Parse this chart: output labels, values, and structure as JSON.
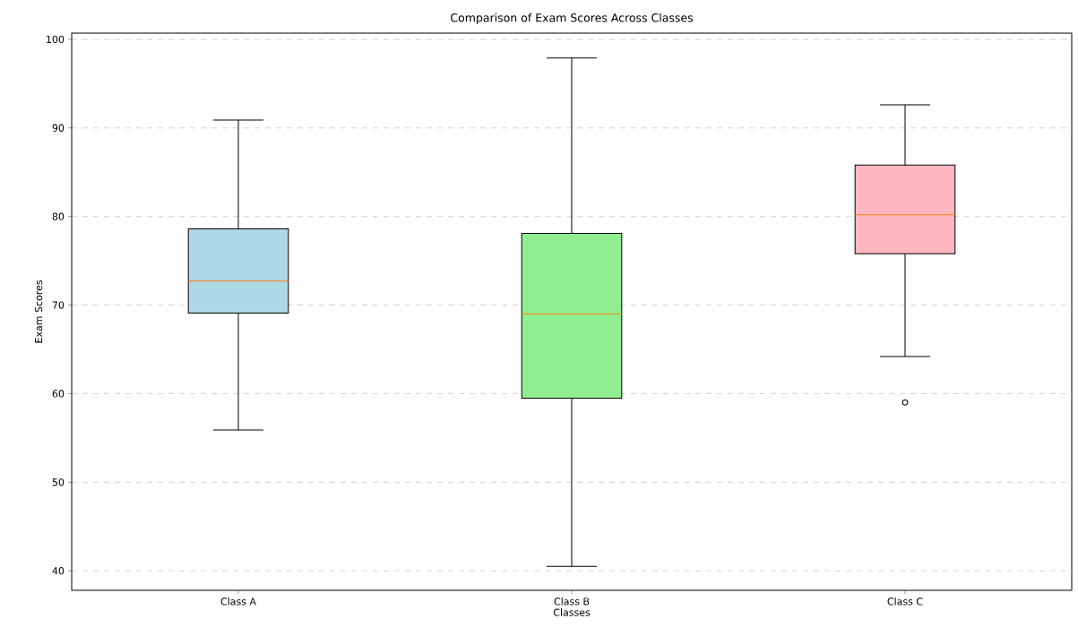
{
  "chart_data": {
    "type": "box",
    "title": "Comparison of Exam Scores Across Classes",
    "xlabel": "Classes",
    "ylabel": "Exam Scores",
    "categories": [
      "Class A",
      "Class B",
      "Class C"
    ],
    "colors": [
      "#add8e6",
      "#90ee90",
      "#ffb6c1"
    ],
    "boxes": [
      {
        "low": 55.9,
        "q1": 69.1,
        "median": 72.7,
        "q3": 78.6,
        "high": 90.9
      },
      {
        "low": 40.5,
        "q1": 59.5,
        "median": 69.0,
        "q3": 78.1,
        "high": 97.9
      },
      {
        "low": 64.2,
        "q1": 75.8,
        "median": 80.2,
        "q3": 85.8,
        "high": 92.6,
        "outliers": [
          59.0
        ]
      }
    ],
    "ylim": [
      37.8,
      100.7
    ],
    "yticks": [
      40,
      50,
      60,
      70,
      80,
      90,
      100
    ],
    "grid": "y"
  }
}
